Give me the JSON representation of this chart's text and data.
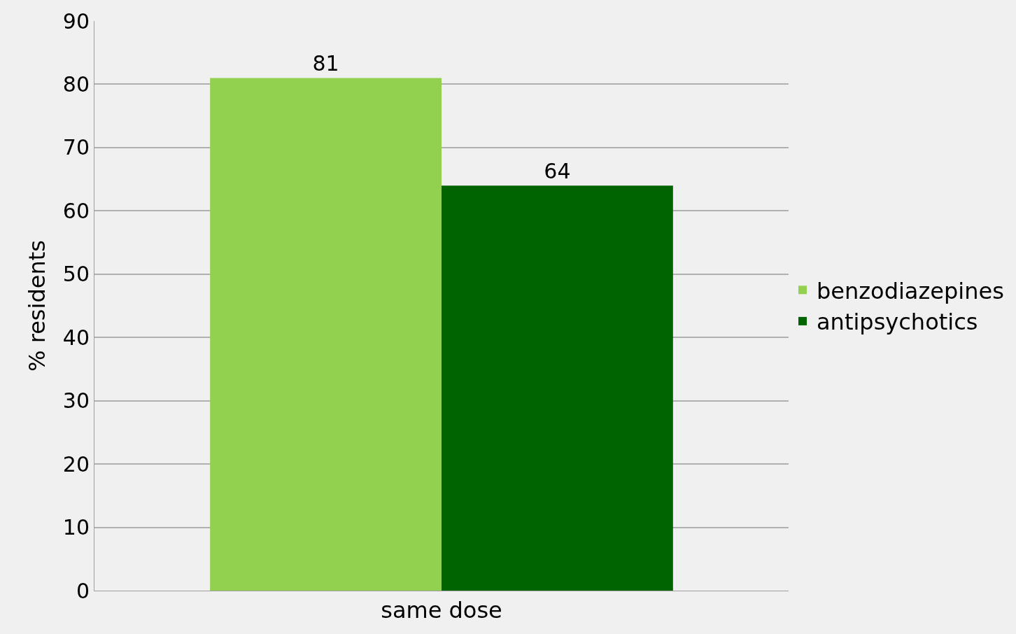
{
  "chart_data": {
    "type": "bar",
    "ylabel": "% residents",
    "categories": [
      "same dose"
    ],
    "series": [
      {
        "name": "benzodiazepines",
        "color": "#92d050",
        "values": [
          81
        ]
      },
      {
        "name": "antipsychotics",
        "color": "#006400",
        "values": [
          64
        ]
      }
    ],
    "ylim": [
      0,
      90
    ],
    "yticks": [
      0,
      10,
      20,
      30,
      40,
      50,
      60,
      70,
      80,
      90
    ],
    "grid": "y",
    "legend": "right",
    "data_labels": true
  }
}
